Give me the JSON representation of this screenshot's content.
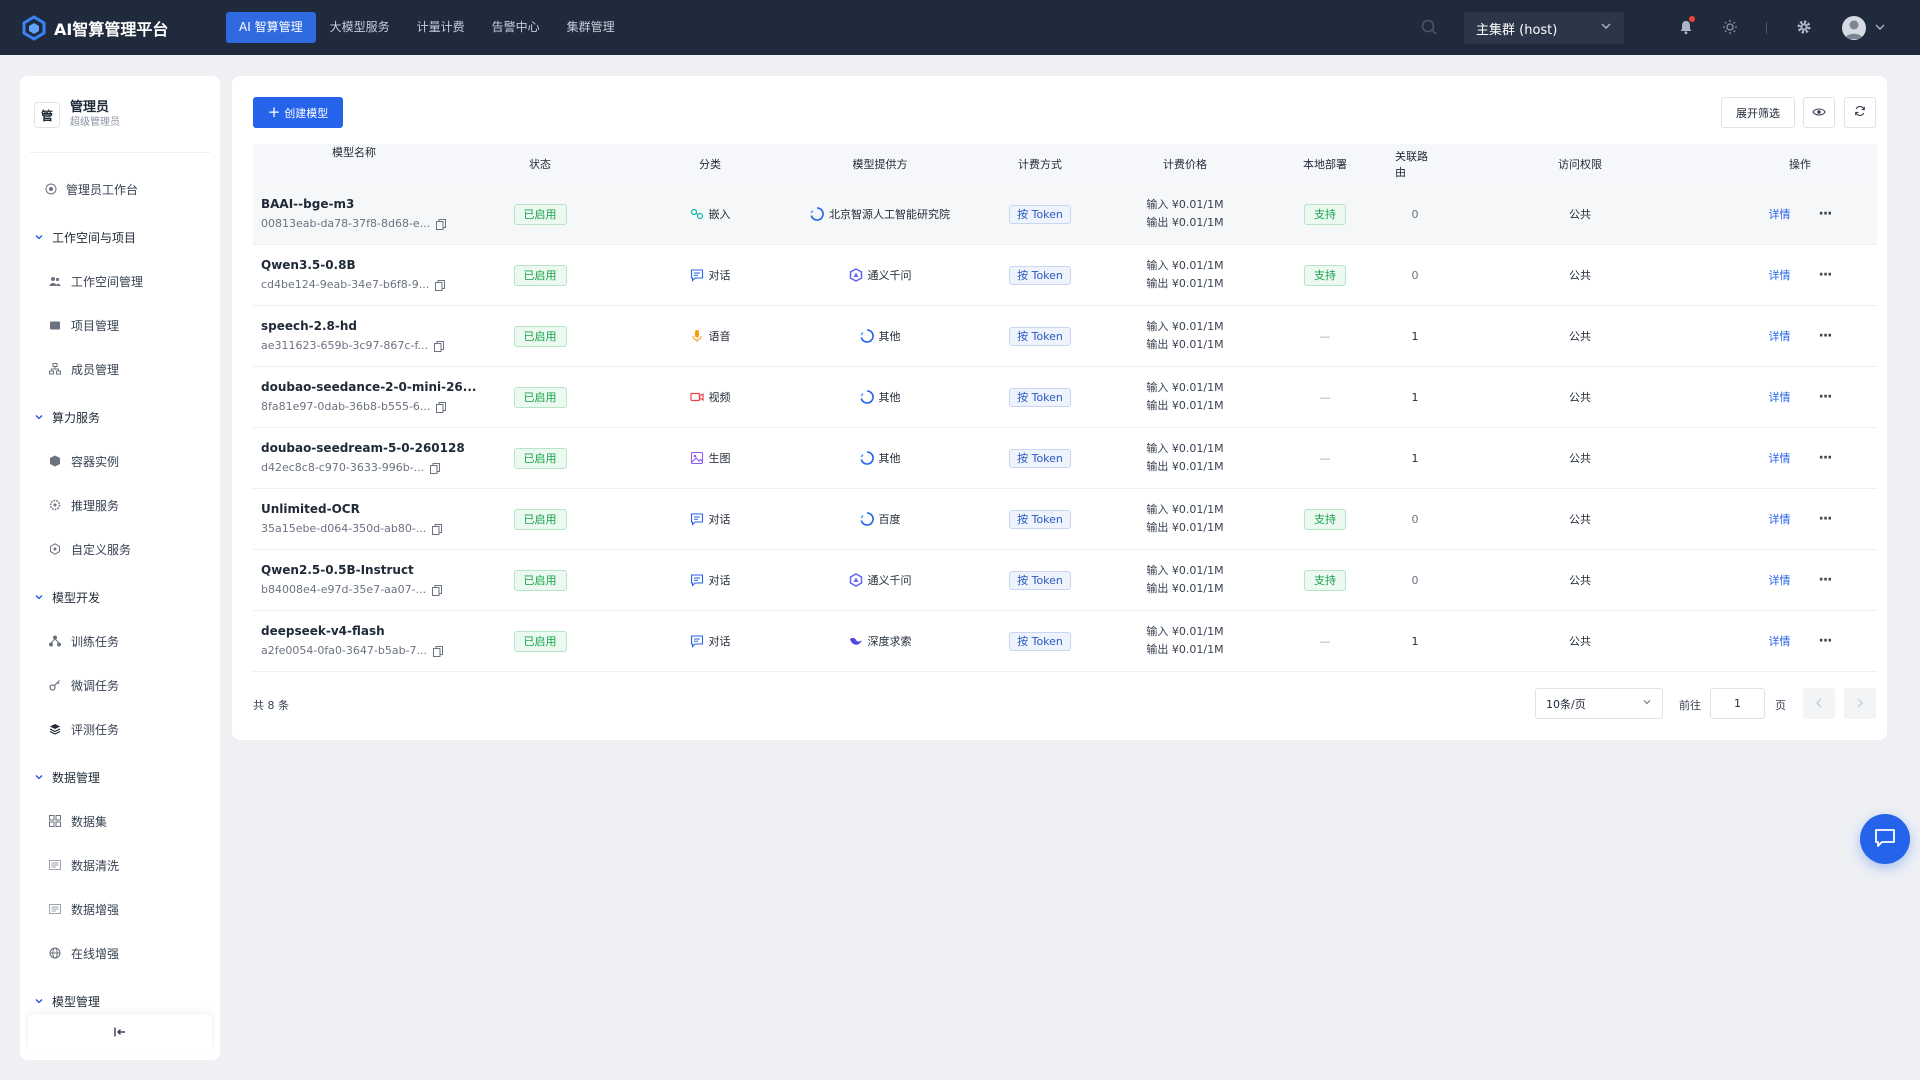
{
  "header": {
    "brand": "AI智算管理平台",
    "nav": [
      "AI 智算管理",
      "大模型服务",
      "计量计费",
      "告警中心",
      "集群管理"
    ],
    "cluster": "主集群 (host)"
  },
  "sidebar": {
    "user_badge": "管",
    "user_name": "管理员",
    "user_role": "超级管理员",
    "workbench": "管理员工作台",
    "groups": [
      {
        "label": "工作空间与项目",
        "items": [
          "工作空间管理",
          "项目管理",
          "成员管理"
        ]
      },
      {
        "label": "算力服务",
        "items": [
          "容器实例",
          "推理服务",
          "自定义服务"
        ]
      },
      {
        "label": "模型开发",
        "items": [
          "训练任务",
          "微调任务",
          "评测任务"
        ]
      },
      {
        "label": "数据管理",
        "items": [
          "数据集",
          "数据清洗",
          "数据增强",
          "在线增强"
        ]
      },
      {
        "label": "模型管理",
        "items": []
      }
    ]
  },
  "toolbar": {
    "create": "创建模型",
    "filter": "展开筛选"
  },
  "table": {
    "columns": [
      "模型名称",
      "状态",
      "分类",
      "模型提供方",
      "计费方式",
      "计费价格",
      "本地部署",
      "关联路由",
      "访问权限",
      "操作"
    ],
    "rows": [
      {
        "name": "BAAI--bge-m3",
        "id": "00813eab-da78-37f8-8d68-e...",
        "status": "已启用",
        "category": "嵌入",
        "provider": "北京智源人工智能研究院",
        "billing": "按 Token",
        "price_in": "输入 ¥0.01/1M",
        "price_out": "输出 ¥0.01/1M",
        "local": "支持",
        "route": "0",
        "access": "公共",
        "detail": "详情"
      },
      {
        "name": "Qwen3.5-0.8B",
        "id": "cd4be124-9eab-34e7-b6f8-9...",
        "status": "已启用",
        "category": "对话",
        "provider": "通义千问",
        "billing": "按 Token",
        "price_in": "输入 ¥0.01/1M",
        "price_out": "输出 ¥0.01/1M",
        "local": "支持",
        "route": "0",
        "access": "公共",
        "detail": "详情"
      },
      {
        "name": "speech-2.8-hd",
        "id": "ae311623-659b-3c97-867c-f...",
        "status": "已启用",
        "category": "语音",
        "provider": "其他",
        "billing": "按 Token",
        "price_in": "输入 ¥0.01/1M",
        "price_out": "输出 ¥0.01/1M",
        "local": "—",
        "route": "1",
        "access": "公共",
        "detail": "详情"
      },
      {
        "name": "doubao-seedance-2-0-mini-26...",
        "id": "8fa81e97-0dab-36b8-b555-6...",
        "status": "已启用",
        "category": "视频",
        "provider": "其他",
        "billing": "按 Token",
        "price_in": "输入 ¥0.01/1M",
        "price_out": "输出 ¥0.01/1M",
        "local": "—",
        "route": "1",
        "access": "公共",
        "detail": "详情"
      },
      {
        "name": "doubao-seedream-5-0-260128",
        "id": "d42ec8c8-c970-3633-996b-...",
        "status": "已启用",
        "category": "生图",
        "provider": "其他",
        "billing": "按 Token",
        "price_in": "输入 ¥0.01/1M",
        "price_out": "输出 ¥0.01/1M",
        "local": "—",
        "route": "1",
        "access": "公共",
        "detail": "详情"
      },
      {
        "name": "Unlimited-OCR",
        "id": "35a15ebe-d064-350d-ab80-...",
        "status": "已启用",
        "category": "对话",
        "provider": "百度",
        "billing": "按 Token",
        "price_in": "输入 ¥0.01/1M",
        "price_out": "输出 ¥0.01/1M",
        "local": "支持",
        "route": "0",
        "access": "公共",
        "detail": "详情"
      },
      {
        "name": "Qwen2.5-0.5B-Instruct",
        "id": "b84008e4-e97d-35e7-aa07-...",
        "status": "已启用",
        "category": "对话",
        "provider": "通义千问",
        "billing": "按 Token",
        "price_in": "输入 ¥0.01/1M",
        "price_out": "输出 ¥0.01/1M",
        "local": "支持",
        "route": "0",
        "access": "公共",
        "detail": "详情"
      },
      {
        "name": "deepseek-v4-flash",
        "id": "a2fe0054-0fa0-3647-b5ab-7...",
        "status": "已启用",
        "category": "对话",
        "provider": "深度求索",
        "billing": "按 Token",
        "price_in": "输入 ¥0.01/1M",
        "price_out": "输出 ¥0.01/1M",
        "local": "—",
        "route": "1",
        "access": "公共",
        "detail": "详情"
      }
    ]
  },
  "pagination": {
    "total": "共 8 条",
    "page_size": "10条/页",
    "goto": "前往",
    "page": "1",
    "page_unit": "页"
  },
  "colors": {
    "topbar": "#1f2a3c",
    "primary": "#2563eb",
    "success": "#16a34a",
    "background": "#eef0f4"
  }
}
